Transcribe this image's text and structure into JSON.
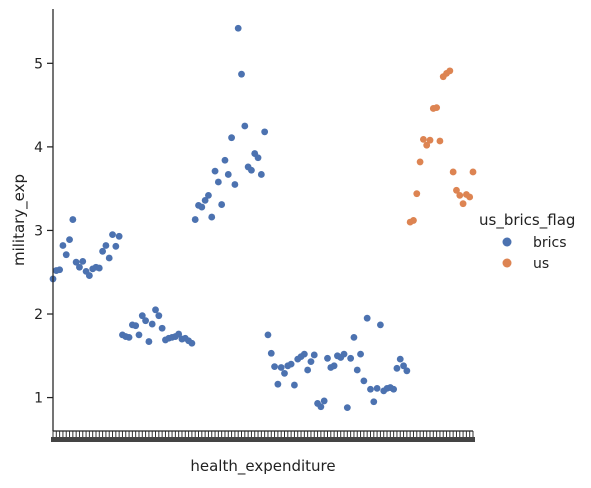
{
  "chart_data": {
    "type": "scatter",
    "title": "",
    "xlabel": "health_expenditure",
    "ylabel": "military_exp",
    "x_is_categorical": true,
    "ylim": [
      0.6,
      5.65
    ],
    "yticks": [
      1,
      2,
      3,
      4,
      5
    ],
    "grid": false,
    "legend": {
      "title": "us_brics_flag",
      "placement": "right",
      "entries": [
        "brics",
        "us"
      ]
    },
    "series": [
      {
        "name": "brics",
        "color": "#4c72b0",
        "values": [
          2.42,
          2.52,
          2.53,
          2.82,
          2.71,
          2.89,
          3.13,
          2.62,
          2.56,
          2.63,
          2.51,
          2.46,
          2.54,
          2.56,
          2.55,
          2.75,
          2.82,
          2.67,
          2.95,
          2.81,
          2.93,
          1.75,
          1.73,
          1.72,
          1.87,
          1.86,
          1.75,
          1.98,
          1.92,
          1.67,
          1.88,
          2.05,
          1.98,
          1.83,
          1.69,
          1.71,
          1.72,
          1.73,
          1.76,
          1.7,
          1.71,
          1.68,
          1.65,
          3.13,
          3.3,
          3.28,
          3.36,
          3.42,
          3.16,
          3.71,
          3.58,
          3.31,
          3.84,
          3.67,
          4.11,
          3.55,
          5.42,
          4.87,
          4.25,
          3.76,
          3.72,
          3.92,
          3.87,
          3.67,
          4.18,
          1.75,
          1.53,
          1.37,
          1.16,
          1.36,
          1.29,
          1.38,
          1.4,
          1.15,
          1.46,
          1.49,
          1.52,
          1.33,
          1.43,
          1.51,
          0.93,
          0.89,
          0.96,
          1.47,
          1.36,
          1.38,
          1.5,
          1.48,
          1.52,
          0.88,
          1.47,
          1.72,
          1.33,
          1.52,
          1.2,
          1.95,
          1.1,
          0.95,
          1.11,
          1.87,
          1.08,
          1.11,
          1.12,
          1.1,
          1.35,
          1.46,
          1.38,
          1.32
        ]
      },
      {
        "name": "us",
        "color": "#dd8452",
        "values": [
          3.1,
          3.12,
          3.44,
          3.82,
          4.09,
          4.02,
          4.08,
          4.46,
          4.47,
          4.07,
          4.84,
          4.88,
          4.91,
          3.7,
          3.48,
          3.42,
          3.32,
          3.43,
          3.4,
          3.7
        ]
      }
    ]
  }
}
